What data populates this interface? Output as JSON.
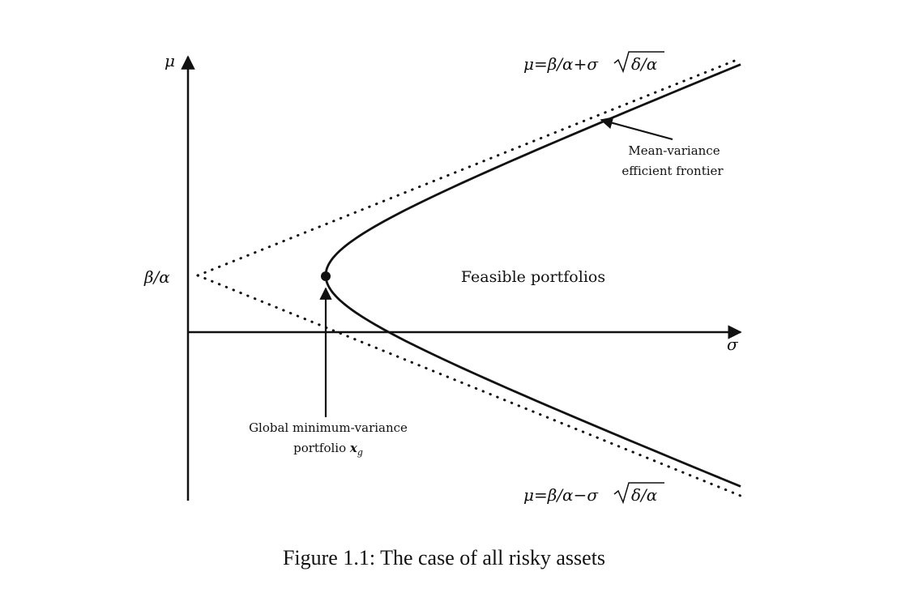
{
  "figure": {
    "caption": "Figure 1.1: The case of all risky assets",
    "axis_mu": "μ",
    "axis_sigma": "σ",
    "intercept_label": "β/α",
    "upper_asymptote": {
      "prefix": "μ=β/α+σ",
      "radical": "δ/α"
    },
    "lower_asymptote": {
      "prefix": "μ=β/α−σ",
      "radical": "δ/α"
    },
    "frontier_label": [
      "Mean-variance",
      "efficient frontier"
    ],
    "feasible_label": "Feasible portfolios",
    "gmv_label_line1": "Global minimum-variance",
    "gmv_label_line2_text": "portfolio ",
    "gmv_symbol": "x",
    "gmv_subscript": "g"
  }
}
